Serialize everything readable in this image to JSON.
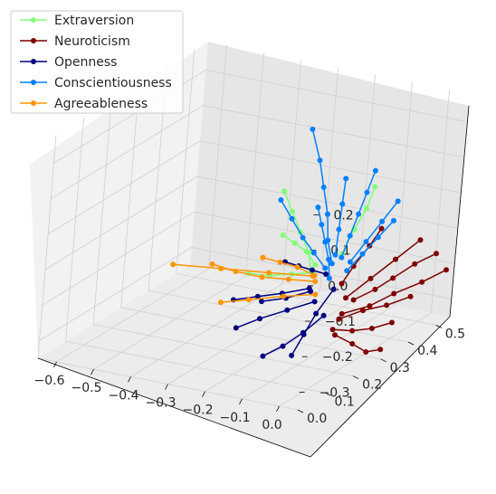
{
  "chart_data": {
    "type": "scatter",
    "title": "",
    "projection": "3d",
    "grid": true,
    "legend_position": "top-left",
    "axes": {
      "x": {
        "ticks": [
          "−0.6",
          "−0.5",
          "−0.4",
          "−0.3",
          "−0.2",
          "−0.1",
          "0.0"
        ],
        "range": [
          -0.65,
          0.05
        ]
      },
      "y": {
        "ticks": [
          "0.0",
          "0.1",
          "0.2",
          "0.3",
          "0.4",
          "0.5"
        ],
        "range": [
          0.0,
          0.55
        ]
      },
      "z": {
        "ticks": [
          "0.2",
          "0.1",
          "0.0",
          "−0.1",
          "−0.2",
          "−0.3"
        ],
        "range": [
          -0.35,
          0.28
        ]
      }
    },
    "series": [
      {
        "name": "Extraversion",
        "color": "#80ff77",
        "trajectories": [
          [
            [
              -0.05,
              0.15,
              -0.05
            ],
            [
              -0.08,
              0.18,
              -0.02
            ],
            [
              -0.12,
              0.2,
              0.02
            ],
            [
              -0.16,
              0.22,
              0.06
            ],
            [
              -0.2,
              0.24,
              0.1
            ]
          ],
          [
            [
              -0.05,
              0.16,
              -0.06
            ],
            [
              -0.1,
              0.15,
              -0.07
            ],
            [
              -0.15,
              0.14,
              -0.08
            ],
            [
              -0.2,
              0.13,
              -0.08
            ]
          ],
          [
            [
              -0.02,
              0.22,
              -0.03
            ],
            [
              -0.02,
              0.26,
              0.02
            ],
            [
              -0.02,
              0.3,
              0.06
            ],
            [
              -0.03,
              0.34,
              0.1
            ]
          ],
          [
            [
              -0.06,
              0.18,
              -0.05
            ],
            [
              -0.1,
              0.2,
              -0.03
            ],
            [
              -0.14,
              0.21,
              -0.02
            ],
            [
              -0.18,
              0.22,
              -0.01
            ]
          ]
        ]
      },
      {
        "name": "Neuroticism",
        "color": "#7f0000",
        "trajectories": [
          [
            [
              0.0,
              0.25,
              -0.17
            ],
            [
              0.02,
              0.3,
              -0.16
            ],
            [
              0.03,
              0.35,
              -0.15
            ],
            [
              0.05,
              0.4,
              -0.13
            ],
            [
              0.07,
              0.45,
              -0.12
            ]
          ],
          [
            [
              0.0,
              0.2,
              -0.2
            ],
            [
              0.02,
              0.26,
              -0.2
            ],
            [
              0.04,
              0.32,
              -0.21
            ],
            [
              0.06,
              0.38,
              -0.21
            ]
          ],
          [
            [
              0.0,
              0.22,
              -0.15
            ],
            [
              0.02,
              0.28,
              -0.12
            ],
            [
              0.04,
              0.34,
              -0.09
            ],
            [
              0.06,
              0.4,
              -0.06
            ]
          ],
          [
            [
              0.0,
              0.18,
              -0.22
            ],
            [
              0.01,
              0.24,
              -0.25
            ],
            [
              0.02,
              0.3,
              -0.27
            ],
            [
              0.03,
              0.36,
              -0.28
            ]
          ],
          [
            [
              0.0,
              0.2,
              -0.1
            ],
            [
              0.0,
              0.24,
              -0.07
            ],
            [
              0.01,
              0.28,
              -0.03
            ],
            [
              0.01,
              0.32,
              0.0
            ]
          ],
          [
            [
              0.0,
              0.21,
              -0.19
            ],
            [
              0.03,
              0.27,
              -0.19
            ],
            [
              0.05,
              0.33,
              -0.18
            ],
            [
              0.08,
              0.39,
              -0.17
            ],
            [
              0.1,
              0.45,
              -0.16
            ]
          ],
          [
            [
              0.0,
              0.19,
              -0.24
            ],
            [
              0.02,
              0.23,
              -0.28
            ],
            [
              0.03,
              0.27,
              -0.32
            ],
            [
              0.04,
              0.31,
              -0.33
            ]
          ]
        ]
      },
      {
        "name": "Openness",
        "color": "#00007f",
        "trajectories": [
          [
            [
              -0.05,
              0.15,
              -0.1
            ],
            [
              -0.1,
              0.12,
              -0.11
            ],
            [
              -0.15,
              0.1,
              -0.12
            ],
            [
              -0.2,
              0.08,
              -0.13
            ]
          ],
          [
            [
              -0.04,
              0.16,
              -0.14
            ],
            [
              -0.09,
              0.13,
              -0.16
            ],
            [
              -0.14,
              0.1,
              -0.18
            ],
            [
              -0.18,
              0.07,
              -0.2
            ]
          ],
          [
            [
              -0.03,
              0.18,
              -0.07
            ],
            [
              -0.06,
              0.17,
              -0.06
            ],
            [
              -0.09,
              0.16,
              -0.05
            ],
            [
              -0.12,
              0.15,
              -0.04
            ]
          ],
          [
            [
              -0.02,
              0.17,
              -0.18
            ],
            [
              -0.05,
              0.14,
              -0.22
            ],
            [
              -0.08,
              0.11,
              -0.25
            ],
            [
              -0.11,
              0.08,
              -0.27
            ]
          ],
          [
            [
              -0.06,
              0.17,
              -0.12
            ],
            [
              -0.11,
              0.15,
              -0.14
            ],
            [
              -0.16,
              0.13,
              -0.15
            ]
          ],
          [
            [
              -0.02,
              0.2,
              -0.12
            ],
            [
              -0.02,
              0.14,
              -0.16
            ],
            [
              -0.02,
              0.1,
              -0.2
            ],
            [
              -0.02,
              0.06,
              -0.24
            ]
          ]
        ]
      },
      {
        "name": "Conscientiousness",
        "color": "#0080ff",
        "trajectories": [
          [
            [
              -0.03,
              0.2,
              -0.05
            ],
            [
              -0.06,
              0.22,
              0.0
            ],
            [
              -0.08,
              0.24,
              0.06
            ],
            [
              -0.11,
              0.26,
              0.12
            ],
            [
              -0.14,
              0.28,
              0.18
            ],
            [
              -0.18,
              0.3,
              0.25
            ]
          ],
          [
            [
              -0.02,
              0.22,
              -0.04
            ],
            [
              -0.03,
              0.26,
              0.0
            ],
            [
              -0.04,
              0.3,
              0.04
            ],
            [
              -0.05,
              0.34,
              0.08
            ],
            [
              -0.06,
              0.38,
              0.12
            ]
          ],
          [
            [
              -0.01,
              0.24,
              -0.06
            ],
            [
              0.0,
              0.28,
              -0.02
            ],
            [
              0.01,
              0.32,
              0.02
            ],
            [
              0.02,
              0.36,
              0.06
            ]
          ],
          [
            [
              -0.04,
              0.19,
              -0.06
            ],
            [
              -0.08,
              0.2,
              -0.03
            ],
            [
              -0.12,
              0.21,
              0.0
            ],
            [
              -0.16,
              0.22,
              0.04
            ],
            [
              -0.2,
              0.23,
              0.08
            ]
          ],
          [
            [
              -0.03,
              0.21,
              -0.03
            ],
            [
              -0.04,
              0.23,
              0.03
            ],
            [
              -0.05,
              0.25,
              0.09
            ],
            [
              -0.06,
              0.27,
              0.15
            ]
          ],
          [
            [
              -0.02,
              0.18,
              -0.08
            ],
            [
              -0.04,
              0.2,
              -0.04
            ],
            [
              -0.06,
              0.21,
              0.0
            ],
            [
              -0.08,
              0.22,
              0.04
            ],
            [
              -0.1,
              0.23,
              0.08
            ]
          ],
          [
            [
              -0.01,
              0.23,
              -0.08
            ],
            [
              0.0,
              0.27,
              -0.05
            ],
            [
              0.01,
              0.31,
              -0.02
            ],
            [
              0.02,
              0.35,
              0.01
            ]
          ]
        ]
      },
      {
        "name": "Agreeableness",
        "color": "#ff9400",
        "trajectories": [
          [
            [
              -0.05,
              0.16,
              -0.07
            ],
            [
              -0.14,
              0.12,
              -0.06
            ],
            [
              -0.24,
              0.08,
              -0.05
            ],
            [
              -0.34,
              0.04,
              -0.04
            ]
          ],
          [
            [
              -0.05,
              0.17,
              -0.09
            ],
            [
              -0.1,
              0.14,
              -0.08
            ],
            [
              -0.15,
              0.11,
              -0.07
            ],
            [
              -0.2,
              0.08,
              -0.05
            ],
            [
              -0.25,
              0.06,
              -0.03
            ]
          ],
          [
            [
              -0.04,
              0.16,
              -0.12
            ],
            [
              -0.11,
              0.14,
              -0.13
            ],
            [
              -0.18,
              0.11,
              -0.14
            ],
            [
              -0.24,
              0.09,
              -0.15
            ]
          ],
          [
            [
              -0.06,
              0.18,
              -0.08
            ],
            [
              -0.1,
              0.17,
              -0.06
            ],
            [
              -0.14,
              0.16,
              -0.05
            ],
            [
              -0.18,
              0.15,
              -0.04
            ]
          ]
        ]
      }
    ]
  }
}
